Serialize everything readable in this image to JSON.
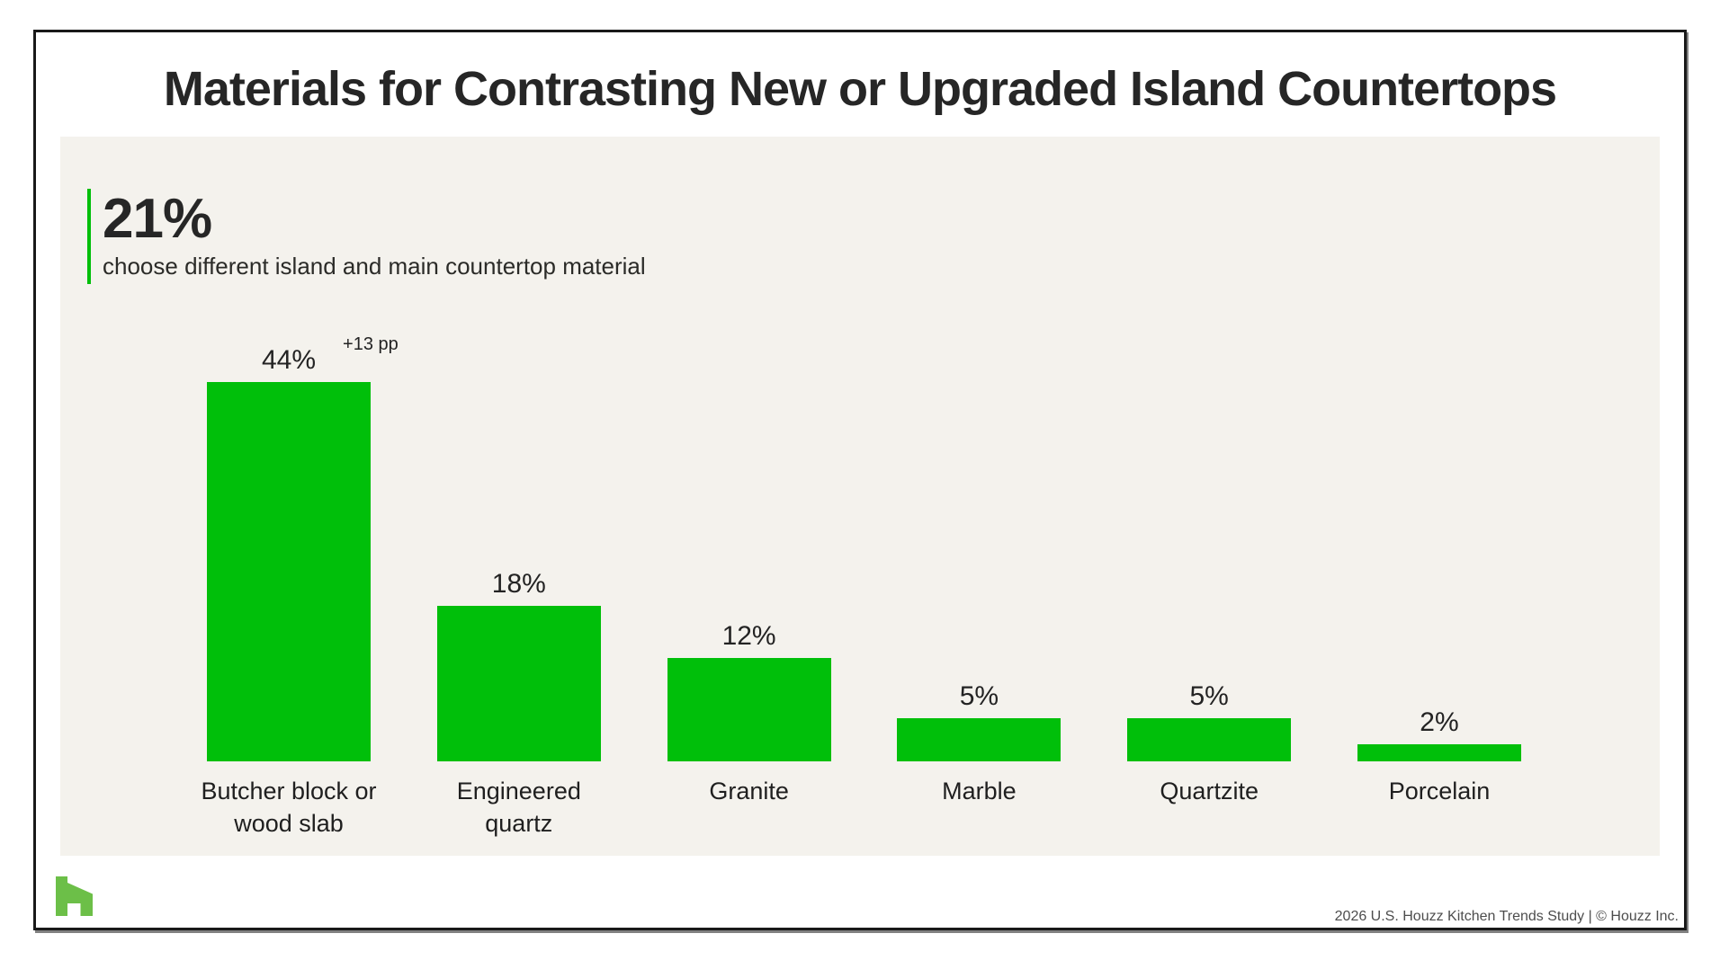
{
  "page": {
    "title": "Materials for Contrasting New or Upgraded Island Countertops",
    "footer_credit": "2026 U.S. Houzz Kitchen Trends Study | © Houzz Inc."
  },
  "stat": {
    "value": "21%",
    "caption": "choose different island and main countertop material"
  },
  "chart_data": {
    "type": "bar",
    "title": "Materials for Contrasting New or Upgraded Island Countertops",
    "categories": [
      "Butcher block or wood slab",
      "Engineered quartz",
      "Granite",
      "Marble",
      "Quartzite",
      "Porcelain"
    ],
    "category_label_lines": [
      [
        "Butcher block or",
        "wood slab"
      ],
      [
        "Engineered",
        "quartz"
      ],
      [
        "Granite"
      ],
      [
        "Marble"
      ],
      [
        "Quartzite"
      ],
      [
        "Porcelain"
      ]
    ],
    "values": [
      44,
      18,
      12,
      5,
      5,
      2
    ],
    "value_labels": [
      "44%",
      "18%",
      "12%",
      "5%",
      "5%",
      "2%"
    ],
    "annotations": [
      {
        "bar_index": 0,
        "text": "+13 pp"
      }
    ],
    "unit": "percent",
    "ylim": [
      0,
      50
    ],
    "grid": false,
    "legend": false,
    "bar_color": "#00bf0a"
  },
  "colors": {
    "bar_green": "#00bf0a",
    "accent_line_green": "#00bf0a",
    "logo_green": "#6cbf48",
    "panel_background": "#f4f2ed",
    "border_black": "#191919",
    "title_text": "#262626",
    "footer_text": "#4d4d4d"
  },
  "logo": {
    "name": "houzz-logo"
  }
}
